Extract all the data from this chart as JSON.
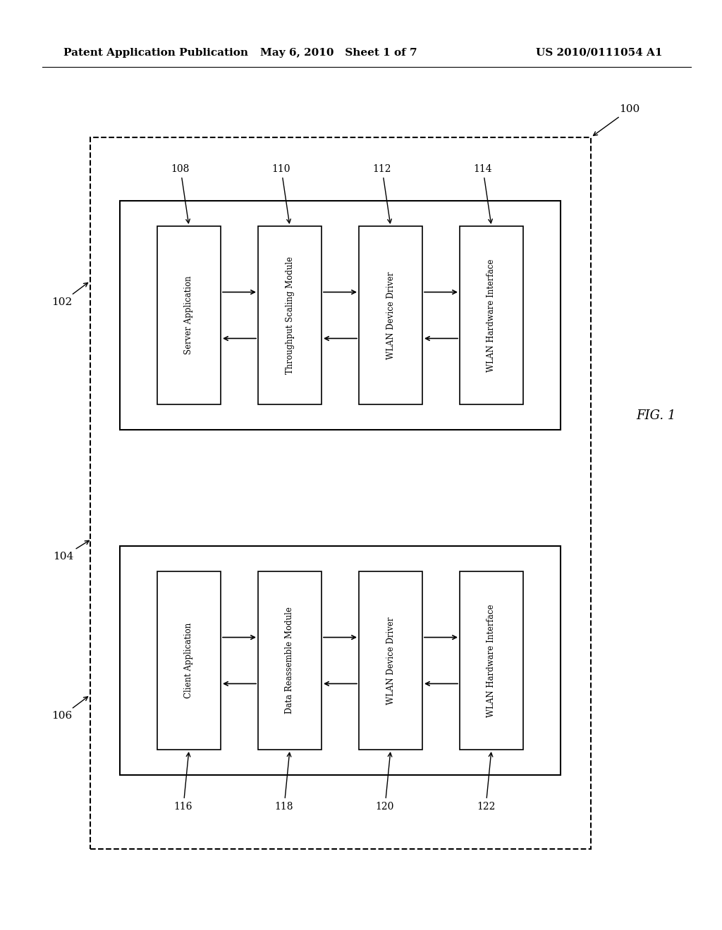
{
  "bg_color": "#ffffff",
  "header_left": "Patent Application Publication",
  "header_mid": "May 6, 2010   Sheet 1 of 7",
  "header_right": "US 2010/0111054 A1",
  "fig_label": "FIG. 1",
  "top_modules": [
    {
      "label": "Server Application",
      "ref": "108"
    },
    {
      "label": "Throughput Scaling Module",
      "ref": "110"
    },
    {
      "label": "WLAN Device Driver",
      "ref": "112"
    },
    {
      "label": "WLAN Hardware Interface",
      "ref": "114"
    }
  ],
  "bottom_modules": [
    {
      "label": "Client Application",
      "ref": "116"
    },
    {
      "label": "Data Reassemble Module",
      "ref": "118"
    },
    {
      "label": "WLAN Device Driver",
      "ref": "120"
    },
    {
      "label": "WLAN Hardware Interface",
      "ref": "122"
    }
  ]
}
